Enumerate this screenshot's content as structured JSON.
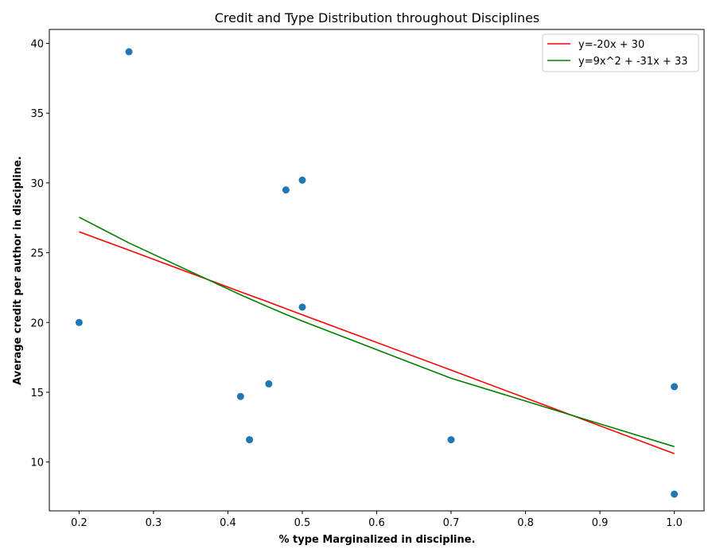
{
  "chart_data": {
    "type": "scatter",
    "title": "Credit and Type Distribution throughout Disciplines",
    "xlabel": "% type Marginalized in discipline.",
    "ylabel": "Average credit per author in discipline.",
    "xlim": [
      0.16,
      1.04
    ],
    "ylim": [
      6.5,
      41.0
    ],
    "xticks": [
      0.2,
      0.3,
      0.4,
      0.5,
      0.6,
      0.7,
      0.8,
      0.9,
      1.0
    ],
    "xtick_labels": [
      "0.2",
      "0.3",
      "0.4",
      "0.5",
      "0.6",
      "0.7",
      "0.8",
      "0.9",
      "1.0"
    ],
    "yticks": [
      10,
      15,
      20,
      25,
      30,
      35,
      40
    ],
    "ytick_labels": [
      "10",
      "15",
      "20",
      "25",
      "30",
      "35",
      "40"
    ],
    "grid": false,
    "legend_position": "top-right",
    "points": {
      "color": "#1f77b4",
      "x": [
        0.2,
        0.267,
        0.417,
        0.429,
        0.455,
        0.478,
        0.5,
        0.5,
        0.7,
        1.0,
        1.0
      ],
      "y": [
        20.0,
        39.4,
        14.7,
        11.6,
        15.6,
        29.5,
        30.2,
        21.1,
        11.6,
        15.4,
        7.7
      ]
    },
    "series": [
      {
        "name": "y=-20x + 30",
        "color": "#ff0000",
        "x": [
          0.2,
          0.267,
          0.417,
          0.429,
          0.455,
          0.478,
          0.5,
          0.7,
          1.0
        ],
        "y": [
          26.5,
          25.18,
          22.2,
          21.96,
          21.45,
          20.99,
          20.55,
          16.59,
          10.6
        ]
      },
      {
        "name": "y=9x^2 + -31x + 33",
        "color": "#008000",
        "x": [
          0.2,
          0.267,
          0.417,
          0.429,
          0.455,
          0.478,
          0.5,
          0.7,
          1.0
        ],
        "y": [
          27.55,
          25.7,
          21.98,
          21.7,
          21.1,
          20.58,
          20.1,
          16.0,
          11.1
        ]
      }
    ]
  }
}
